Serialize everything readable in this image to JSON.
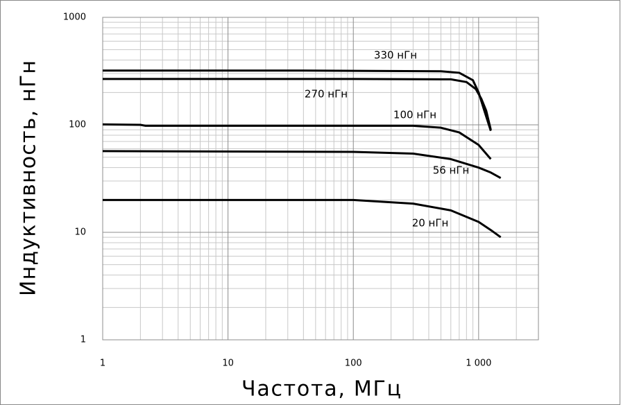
{
  "chart_data": {
    "type": "line",
    "xlabel": "Частота, МГц",
    "ylabel": "Индуктивность, нГн",
    "log_x": true,
    "log_y": true,
    "grid": true,
    "minor_grid": true,
    "xlim": [
      1,
      3000
    ],
    "ylim": [
      1,
      1000
    ],
    "xticks": [
      1,
      10,
      100,
      {
        "value": 1000,
        "label": "1 000"
      }
    ],
    "yticks": [
      1,
      10,
      100,
      1000
    ],
    "series": [
      {
        "name": "330 нГн",
        "color": "#000000",
        "x": [
          1,
          40,
          500,
          700,
          900,
          1000,
          1100,
          1250
        ],
        "values": [
          320,
          320,
          315,
          305,
          260,
          200,
          140,
          88
        ]
      },
      {
        "name": "270 нГн",
        "color": "#000000",
        "x": [
          1,
          100,
          600,
          800,
          950,
          1050,
          1150,
          1250
        ],
        "values": [
          267,
          267,
          265,
          250,
          215,
          175,
          135,
          90
        ]
      },
      {
        "name": "100 нГн",
        "color": "#000000",
        "x": [
          1,
          2,
          2.2,
          300,
          500,
          700,
          1000,
          1250
        ],
        "values": [
          101,
          100,
          98,
          98,
          94,
          85,
          65,
          48
        ]
      },
      {
        "name": "56 нГн",
        "color": "#000000",
        "x": [
          1,
          100,
          300,
          600,
          1000,
          1250,
          1500
        ],
        "values": [
          57,
          56,
          54,
          48,
          40,
          36,
          32
        ]
      },
      {
        "name": "20 нГн",
        "color": "#000000",
        "x": [
          1,
          100,
          300,
          600,
          1000,
          1250,
          1500
        ],
        "values": [
          20,
          20,
          18.5,
          16,
          12.5,
          10.5,
          9
        ]
      }
    ]
  }
}
